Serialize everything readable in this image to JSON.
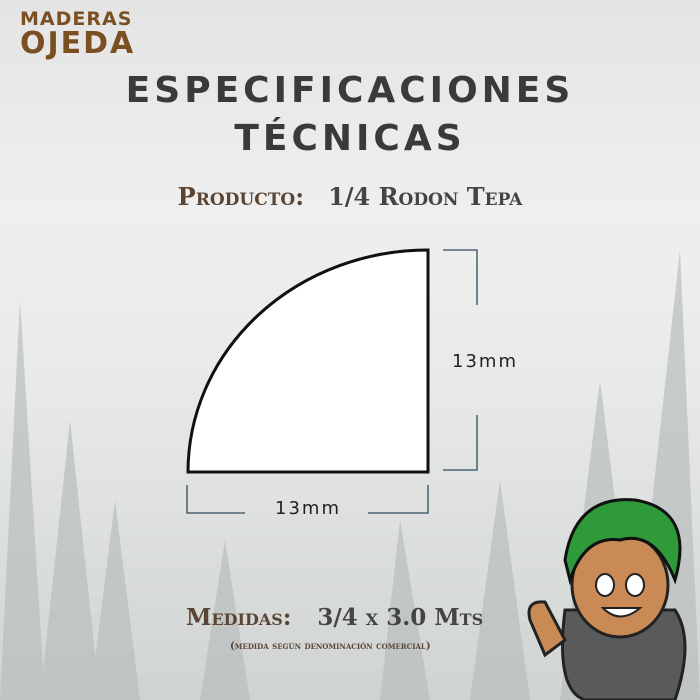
{
  "logo": {
    "line1": "MADERAS",
    "line2": "OJEDA"
  },
  "title": {
    "line1": "ESPECIFICACIONES",
    "line2": "TÉCNICAS"
  },
  "product": {
    "label": "Producto:",
    "value": "1/4 Rodon Tepa"
  },
  "dimensions": {
    "height": "13mm",
    "width": "13mm"
  },
  "measures": {
    "label": "Medidas:",
    "value": "3/4 x  3.0 Mts",
    "note": "(medida según denominación comercial)"
  },
  "colors": {
    "brand": "#7a4f22",
    "line": "#2e4a5a"
  }
}
